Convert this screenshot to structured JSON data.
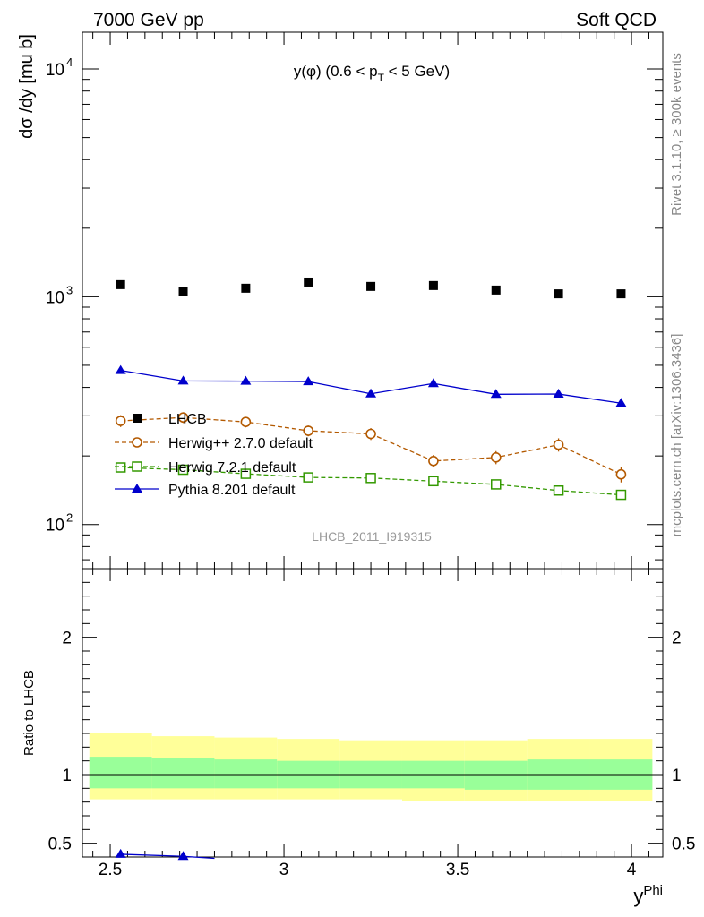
{
  "header": {
    "left": "7000 GeV pp",
    "right": "Soft QCD"
  },
  "side_labels": {
    "rivet": "Rivet 3.1.10, ≥ 300k events",
    "mcplots": "mcplots.cern.ch [arXiv:1306.3436]"
  },
  "colors": {
    "data": "#000000",
    "herwigpp": "#b35900",
    "herwig7": "#339900",
    "pythia": "#0000cc",
    "band_inner": "#99ff99",
    "band_outer": "#ffff99"
  },
  "chart_data": [
    {
      "panel": "main",
      "type": "scatter",
      "title": "y(φ) (0.6 < p_T < 5 GeV)",
      "ylabel": "dσ /dy [mu b]",
      "analysis_id": "LHCB_2011_I919315",
      "yscale": "log",
      "xlim": [
        2.42,
        4.09
      ],
      "ylim": [
        64,
        14500
      ],
      "y_ticks": [
        {
          "value": 100,
          "base": "10",
          "exp": "2"
        },
        {
          "value": 1000,
          "base": "10",
          "exp": "3"
        },
        {
          "value": 10000,
          "base": "10",
          "exp": "4"
        }
      ],
      "x": [
        2.53,
        2.71,
        2.89,
        3.07,
        3.25,
        3.43,
        3.61,
        3.79,
        3.97
      ],
      "series": [
        {
          "name": "LHCB",
          "style": "data",
          "values": [
            1130,
            1050,
            1090,
            1160,
            1110,
            1120,
            1070,
            1030,
            1030
          ]
        },
        {
          "name": "Herwig++ 2.7.0 default",
          "style": "herwigpp",
          "values": [
            285,
            295,
            282,
            258,
            250,
            190,
            197,
            224,
            166
          ],
          "errors": [
            17,
            16,
            15,
            14,
            15,
            12,
            13,
            15,
            13
          ]
        },
        {
          "name": "Herwig 7.2.1 default",
          "style": "herwig7",
          "values": [
            178,
            174,
            167,
            161,
            160,
            155,
            150,
            141,
            135
          ]
        },
        {
          "name": "Pythia 8.201 default",
          "style": "pythia",
          "values": [
            475,
            427,
            426,
            424,
            375,
            416,
            373,
            374,
            341
          ]
        }
      ],
      "legend_position": "middle-left"
    },
    {
      "panel": "ratio",
      "type": "line",
      "ylabel": "Ratio to LHCB",
      "xlabel": "y^Phi",
      "xlim": [
        2.42,
        4.09
      ],
      "ylim": [
        0.4,
        2.5
      ],
      "x_ticks": [
        "2.5",
        "3",
        "3.5",
        "4"
      ],
      "y_ticks": [
        "0.5",
        "1",
        "2"
      ],
      "bins": [
        2.44,
        2.62,
        2.8,
        2.98,
        3.16,
        3.34,
        3.52,
        3.7,
        3.88,
        4.06
      ],
      "band_inner": {
        "low": [
          0.9,
          0.9,
          0.9,
          0.9,
          0.9,
          0.9,
          0.89,
          0.89,
          0.89
        ],
        "high": [
          1.13,
          1.12,
          1.11,
          1.1,
          1.1,
          1.1,
          1.1,
          1.11,
          1.11
        ]
      },
      "band_outer": {
        "low": [
          0.82,
          0.82,
          0.82,
          0.82,
          0.82,
          0.81,
          0.81,
          0.81,
          0.81
        ],
        "high": [
          1.3,
          1.28,
          1.27,
          1.26,
          1.25,
          1.25,
          1.25,
          1.26,
          1.26
        ]
      },
      "pythia_ratio": {
        "x": [
          2.53,
          2.71,
          2.8
        ],
        "values": [
          0.42,
          0.405,
          0.39
        ],
        "errors": [
          0.012,
          0.012,
          0
        ]
      }
    }
  ]
}
